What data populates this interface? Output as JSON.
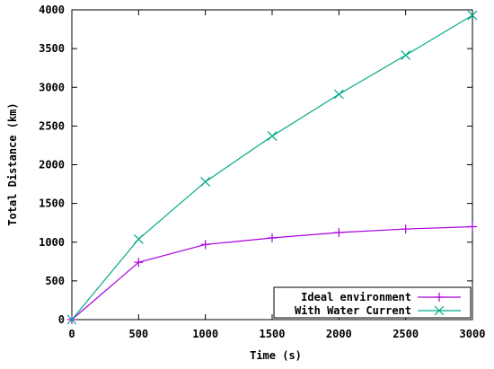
{
  "chart_data": {
    "type": "line",
    "title": "",
    "xlabel": "Time (s)",
    "ylabel": "Total Distance (km)",
    "xlim": [
      0,
      3000
    ],
    "ylim": [
      0,
      4000
    ],
    "x_ticks": [
      "0",
      "500",
      "1000",
      "1500",
      "2000",
      "2500",
      "3000"
    ],
    "y_ticks": [
      "0",
      "500",
      "1000",
      "1500",
      "2000",
      "2500",
      "3000",
      "3500",
      "4000"
    ],
    "grid": false,
    "legend_position": "bottom-right",
    "series": [
      {
        "name": "Ideal environment",
        "color": "#aa00dd",
        "marker": "plus",
        "x": [
          0,
          500,
          1000,
          1500,
          2000,
          2500,
          3000
        ],
        "y": [
          0,
          740,
          970,
          1055,
          1125,
          1170,
          1200
        ]
      },
      {
        "name": "With Water Current",
        "color": "#00aa88",
        "marker": "cross",
        "x": [
          0,
          500,
          1000,
          1500,
          2000,
          2500,
          3000
        ],
        "y": [
          0,
          1040,
          1780,
          2370,
          2910,
          3415,
          3930
        ]
      }
    ]
  }
}
